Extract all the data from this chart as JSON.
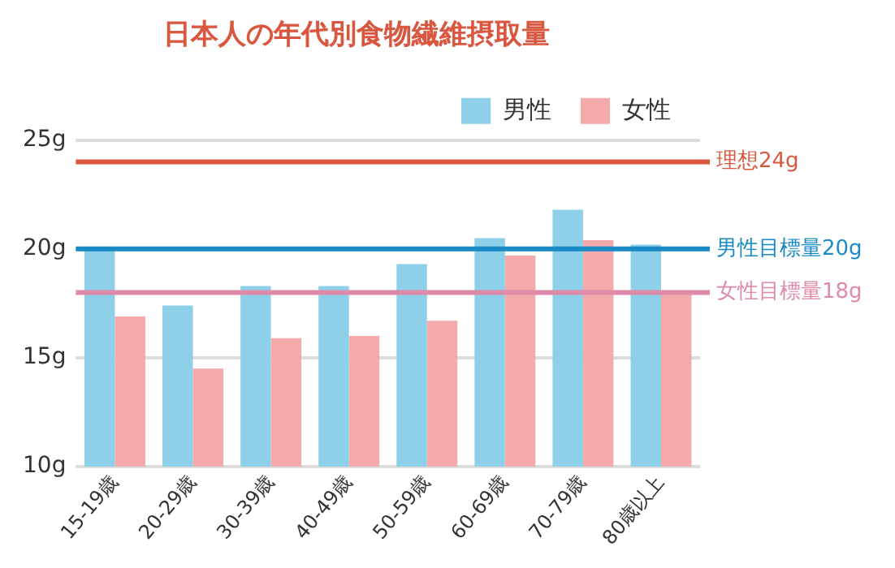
{
  "chart_data": {
    "type": "bar",
    "title": "日本人の年代別食物繊維摂取量",
    "categories": [
      "15-19歳",
      "20-29歳",
      "30-39歳",
      "40-49歳",
      "50-59歳",
      "60-69歳",
      "70-79歳",
      "80歳以上"
    ],
    "series": [
      {
        "name": "男性",
        "color": "#8ecfea",
        "values": [
          20.0,
          17.4,
          18.3,
          18.3,
          19.3,
          20.5,
          21.8,
          20.2
        ]
      },
      {
        "name": "女性",
        "color": "#f4a9ab",
        "values": [
          16.9,
          14.5,
          15.9,
          16.0,
          16.7,
          19.7,
          20.4,
          18.0
        ]
      }
    ],
    "ylim": [
      10,
      25
    ],
    "yticks": [
      {
        "value": 10,
        "label": "10g"
      },
      {
        "value": 15,
        "label": "15g"
      },
      {
        "value": 20,
        "label": "20g"
      },
      {
        "value": 25,
        "label": "25g"
      }
    ],
    "ref_lines": [
      {
        "axis": "y",
        "value": 24,
        "label": "理想24g",
        "color": "#d9573f"
      },
      {
        "axis": "y",
        "value": 20,
        "label": "男性目標量20g",
        "color": "#1a8ac6"
      },
      {
        "axis": "y",
        "value": 18,
        "label": "女性目標量18g",
        "color": "#de8aa8"
      }
    ],
    "grid": "y",
    "legend": "top right"
  }
}
